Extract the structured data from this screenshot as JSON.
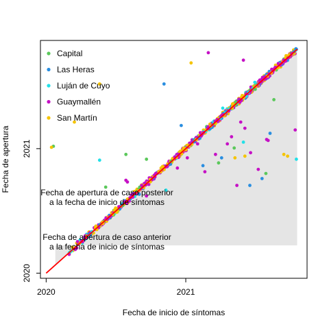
{
  "chart_data": {
    "type": "scatter",
    "title": "",
    "xlabel": "Fecha de inicio de síntomas",
    "ylabel": "Fecha de apertura",
    "xlim": [
      "2019-12-17",
      "2021-11-15"
    ],
    "ylim": [
      "2019-12-17",
      "2021-11-15"
    ],
    "x_ticks": [
      {
        "date": "2020-01-01",
        "label": "2020"
      },
      {
        "date": "2021-01-01",
        "label": "2021"
      }
    ],
    "y_ticks": [
      {
        "date": "2020-01-01",
        "label": "2020"
      },
      {
        "date": "2021-01-01",
        "label": "2021"
      }
    ],
    "grid": false,
    "legend_position": "top-left",
    "reference_line": {
      "label": "",
      "color": "#FF0000",
      "from": "2020-01-01",
      "to": "2021-10-20"
    },
    "shaded_region": {
      "color": "#E5E5E5",
      "x_from": "2020-01-25",
      "x_to": "2021-10-20"
    },
    "annotations": [
      {
        "lines": [
          "Fecha de apertura de caso posterior",
          "a la fecha de inicio de síntomas"
        ]
      },
      {
        "lines": [
          "Fecha de apertura de caso anterior",
          "a la fecha de inicio de síntomas"
        ]
      }
    ],
    "series": [
      {
        "name": "Capital",
        "color": "#5BC85B",
        "points": [
          [
            "2020-01-20",
            "2021-01-08"
          ],
          [
            "2020-07-28",
            "2020-12-15"
          ],
          [
            "2020-09-20",
            "2020-12-01"
          ],
          [
            "2021-05-08",
            "2021-01-03"
          ],
          [
            "2021-07-30",
            "2020-10-20"
          ],
          [
            "2021-03-28",
            "2020-11-20"
          ],
          [
            "2020-06-05",
            "2020-09-10"
          ],
          [
            "2021-08-20",
            "2021-05-25"
          ]
        ]
      },
      {
        "name": "Las Heras",
        "color": "#2A8EE0",
        "points": [
          [
            "2020-11-05",
            "2021-07-10"
          ],
          [
            "2021-06-18",
            "2020-09-15"
          ],
          [
            "2021-04-05",
            "2020-12-05"
          ],
          [
            "2021-08-10",
            "2021-02-15"
          ],
          [
            "2020-09-01",
            "2020-08-20"
          ],
          [
            "2021-07-20",
            "2020-10-05"
          ],
          [
            "2021-02-15",
            "2020-11-12"
          ],
          [
            "2020-12-20",
            "2021-03-10"
          ]
        ]
      },
      {
        "name": "Luján de Cuyo",
        "color": "#22E0E8",
        "points": [
          [
            "2021-10-18",
            "2020-12-01"
          ],
          [
            "2020-05-20",
            "2020-11-28"
          ],
          [
            "2021-04-08",
            "2021-04-30"
          ],
          [
            "2021-06-01",
            "2021-01-20"
          ],
          [
            "2020-11-10",
            "2020-09-01"
          ],
          [
            "2021-07-01",
            "2021-07-15"
          ]
        ]
      },
      {
        "name": "Guaymallén",
        "color": "#C511C5",
        "points": [
          [
            "2021-03-01",
            "2021-10-10"
          ],
          [
            "2021-06-01",
            "2021-09-18"
          ],
          [
            "2021-06-20",
            "2020-12-20"
          ],
          [
            "2021-05-15",
            "2020-09-15"
          ],
          [
            "2021-08-05",
            "2021-01-25"
          ],
          [
            "2021-10-15",
            "2021-02-25"
          ],
          [
            "2021-07-10",
            "2020-11-01"
          ],
          [
            "2021-04-20",
            "2021-01-15"
          ],
          [
            "2020-12-10",
            "2020-11-05"
          ],
          [
            "2021-02-01",
            "2021-01-15"
          ],
          [
            "2021-01-05",
            "2020-12-05"
          ],
          [
            "2021-05-25",
            "2021-03-20"
          ],
          [
            "2021-06-05",
            "2021-03-02"
          ],
          [
            "2021-03-20",
            "2020-12-15"
          ],
          [
            "2020-09-20",
            "2020-08-15"
          ],
          [
            "2020-10-15",
            "2020-10-20"
          ],
          [
            "2021-02-20",
            "2020-10-25"
          ],
          [
            "2021-05-01",
            "2021-02-05"
          ],
          [
            "2020-08-01",
            "2020-09-25"
          ],
          [
            "2020-07-28",
            "2020-09-30"
          ],
          [
            "2021-08-01",
            "2021-01-28"
          ]
        ]
      },
      {
        "name": "San Martín",
        "color": "#F5C400",
        "points": [
          [
            "2020-01-15",
            "2021-01-05"
          ],
          [
            "2020-03-15",
            "2021-03-20"
          ],
          [
            "2020-05-20",
            "2021-07-10"
          ],
          [
            "2021-01-15",
            "2021-09-10"
          ],
          [
            "2021-09-25",
            "2020-12-10"
          ],
          [
            "2021-06-05",
            "2020-12-10"
          ],
          [
            "2021-05-10",
            "2020-12-05"
          ],
          [
            "2021-09-15",
            "2020-12-15"
          ]
        ]
      }
    ],
    "dense_band": {
      "from": "2020-03-01",
      "to": "2021-10-20",
      "note": "thick diagonal band of overlapping points along the reference line"
    }
  }
}
